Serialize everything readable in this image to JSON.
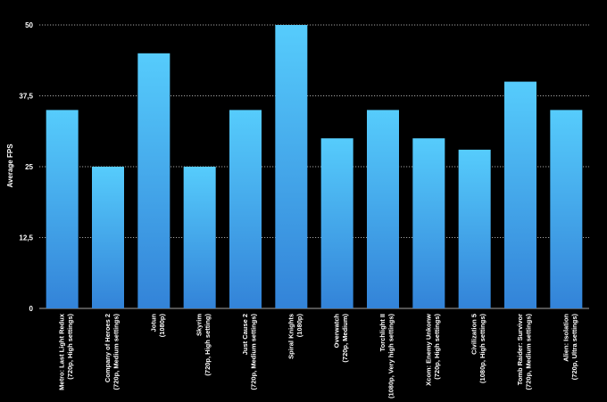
{
  "chart_data": {
    "type": "bar",
    "title": "",
    "xlabel": "",
    "ylabel": "Average FPS",
    "ylim": [
      0,
      50
    ],
    "yticks": [
      "0",
      "12,5",
      "25",
      "37,5",
      "50"
    ],
    "grid": true,
    "categories": [
      [
        "Metro: Last Light Redux",
        "(720p, High settings)"
      ],
      [
        "Company of Heroes 2",
        "(720p, Medium settings)"
      ],
      [
        "Jotun",
        "(1080p)"
      ],
      [
        "Skyrim",
        "(720p, High setting)"
      ],
      [
        "Just Cause 2",
        "(720p, Medium settings)"
      ],
      [
        "Spiral Knights",
        "(1080p)"
      ],
      [
        "Overwatch",
        "(720p, Medium)"
      ],
      [
        "Torchlight II",
        "(1080p, Very high settings)"
      ],
      [
        "Xcom: Enemy Unkonw",
        "(720p, High settings)"
      ],
      [
        "Civilization 5",
        "(1080p, High settings)"
      ],
      [
        "Tomb Raider: Survivor",
        "(720p, Medium settings)"
      ],
      [
        "Alien: Isolation",
        "(720p, Ultra settings)"
      ]
    ],
    "values": [
      35,
      25,
      45,
      25,
      35,
      50,
      30,
      35,
      30,
      28,
      40,
      35
    ],
    "colors": {
      "bar_top": "#56ccfc",
      "bar_bottom": "#3383d8",
      "background": "#000000",
      "text": "#ffffff"
    }
  }
}
